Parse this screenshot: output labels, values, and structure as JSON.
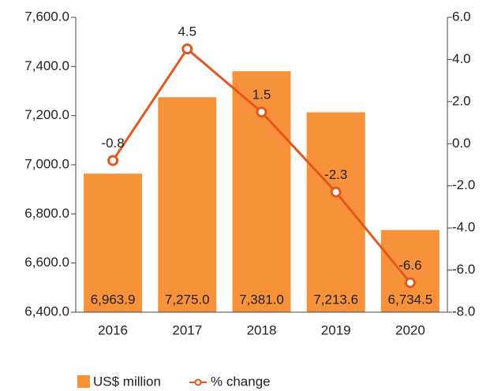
{
  "chart_data": {
    "type": "bar",
    "categories": [
      "2016",
      "2017",
      "2018",
      "2019",
      "2020"
    ],
    "series": [
      {
        "name": "US$ million",
        "color": "#f7923a",
        "type": "bar",
        "values": [
          6963.9,
          7275.0,
          7381.0,
          7213.6,
          6734.5
        ],
        "value_labels": [
          "6,963.9",
          "7,275.0",
          "7,381.0",
          "7,213.6",
          "6,734.5"
        ]
      },
      {
        "name": "% change",
        "color": "#e2581d",
        "type": "line",
        "axis": "y2",
        "values": [
          -0.8,
          4.5,
          1.5,
          -2.3,
          -6.6
        ]
      }
    ],
    "ylim": [
      6400,
      7600
    ],
    "yticks": [
      {
        "value": 6400,
        "label": "6,400.0"
      },
      {
        "value": 6600,
        "label": "6,600.0"
      },
      {
        "value": 6800,
        "label": "6,800.0"
      },
      {
        "value": 7000,
        "label": "7,000.0"
      },
      {
        "value": 7200,
        "label": "7,200.0"
      },
      {
        "value": 7400,
        "label": "7,400.0"
      },
      {
        "value": 7600,
        "label": "7,600.0"
      }
    ],
    "y2lim": [
      -8,
      6
    ],
    "y2ticks": [
      {
        "value": -8,
        "label": "-8.0"
      },
      {
        "value": -6,
        "label": "-6.0"
      },
      {
        "value": -4,
        "label": "-4.0"
      },
      {
        "value": -2,
        "label": "-2.0"
      },
      {
        "value": 0,
        "label": "0.0"
      },
      {
        "value": 2,
        "label": "2.0"
      },
      {
        "value": 4,
        "label": "4.0"
      },
      {
        "value": 6,
        "label": "6.0"
      }
    ],
    "grid": false
  }
}
